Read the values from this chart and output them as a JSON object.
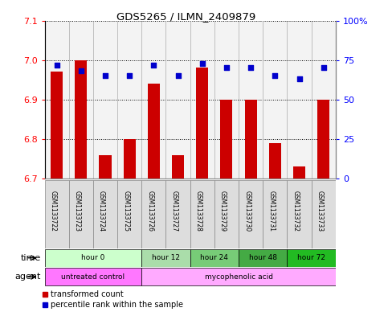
{
  "title": "GDS5265 / ILMN_2409879",
  "samples": [
    "GSM1133722",
    "GSM1133723",
    "GSM1133724",
    "GSM1133725",
    "GSM1133726",
    "GSM1133727",
    "GSM1133728",
    "GSM1133729",
    "GSM1133730",
    "GSM1133731",
    "GSM1133732",
    "GSM1133733"
  ],
  "bar_values": [
    6.97,
    7.0,
    6.76,
    6.8,
    6.94,
    6.76,
    6.98,
    6.9,
    6.9,
    6.79,
    6.73,
    6.9
  ],
  "dot_values": [
    72,
    68,
    65,
    65,
    72,
    65,
    73,
    70,
    70,
    65,
    63,
    70
  ],
  "ylim": [
    6.7,
    7.1
  ],
  "y2lim": [
    0,
    100
  ],
  "yticks": [
    6.7,
    6.8,
    6.9,
    7.0,
    7.1
  ],
  "y2ticks": [
    0,
    25,
    50,
    75,
    100
  ],
  "bar_color": "#cc0000",
  "dot_color": "#0000cc",
  "fig_bg": "#ffffff",
  "time_groups": [
    {
      "label": "hour 0",
      "start": 0,
      "end": 4,
      "color": "#ccffcc"
    },
    {
      "label": "hour 12",
      "start": 4,
      "end": 6,
      "color": "#aaddaa"
    },
    {
      "label": "hour 24",
      "start": 6,
      "end": 8,
      "color": "#77cc77"
    },
    {
      "label": "hour 48",
      "start": 8,
      "end": 10,
      "color": "#44aa44"
    },
    {
      "label": "hour 72",
      "start": 10,
      "end": 12,
      "color": "#22bb22"
    }
  ],
  "agent_groups": [
    {
      "label": "untreated control",
      "start": 0,
      "end": 4,
      "color": "#ff77ff"
    },
    {
      "label": "mycophenolic acid",
      "start": 4,
      "end": 12,
      "color": "#ffaaff"
    }
  ],
  "bar_width": 0.5,
  "n": 12
}
